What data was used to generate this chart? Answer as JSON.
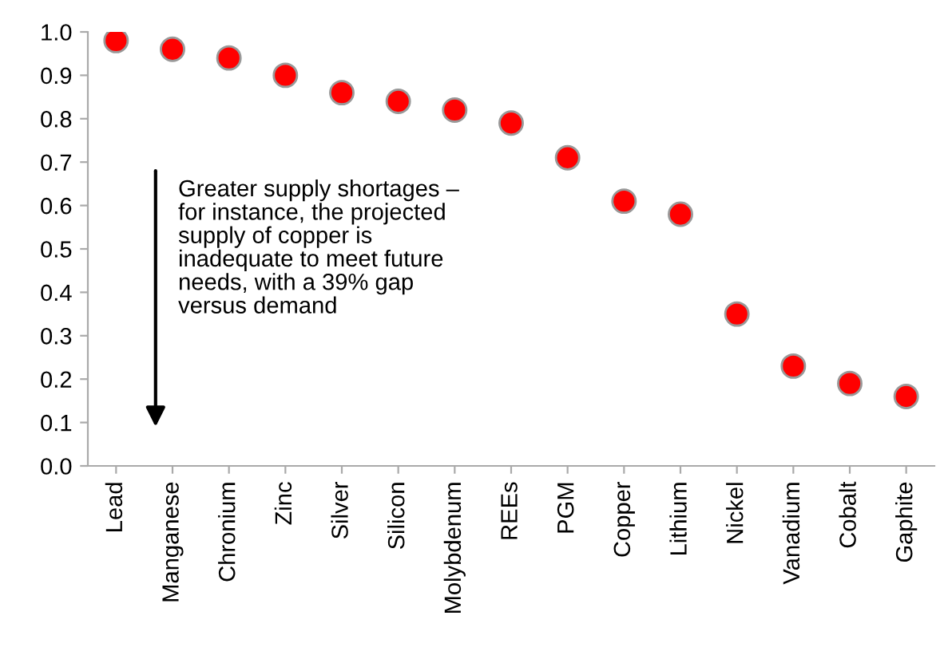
{
  "chart_data": {
    "type": "scatter",
    "categories": [
      "Lead",
      "Manganese",
      "Chronium",
      "Zinc",
      "Silver",
      "Silicon",
      "Molybdenum",
      "REEs",
      "PGM",
      "Copper",
      "Lithium",
      "Nickel",
      "Vanadium",
      "Cobalt",
      "Gaphite"
    ],
    "series": [
      {
        "color": "#ff0000",
        "values": [
          0.98,
          0.96,
          0.94,
          0.9,
          0.86,
          0.84,
          0.82,
          0.79,
          0.71,
          0.61,
          0.58,
          0.35,
          0.23,
          0.19,
          0.16
        ]
      }
    ],
    "ylim": [
      0,
      1
    ],
    "yticks": [
      {
        "value": 0,
        "label": "0.0"
      },
      0.1,
      0.2,
      0.3,
      0.4,
      0.5,
      0.6,
      0.7,
      0.8,
      0.9,
      {
        "value": 1,
        "label": "1.0"
      }
    ],
    "grid": false,
    "legend": false,
    "marker": "circle",
    "annotations": [
      "Greater supply shortages –\nfor instance, the projected\nsupply of copper is\ninadequate to meet future\nneeds, with a 39% gap\nversus demand"
    ]
  }
}
